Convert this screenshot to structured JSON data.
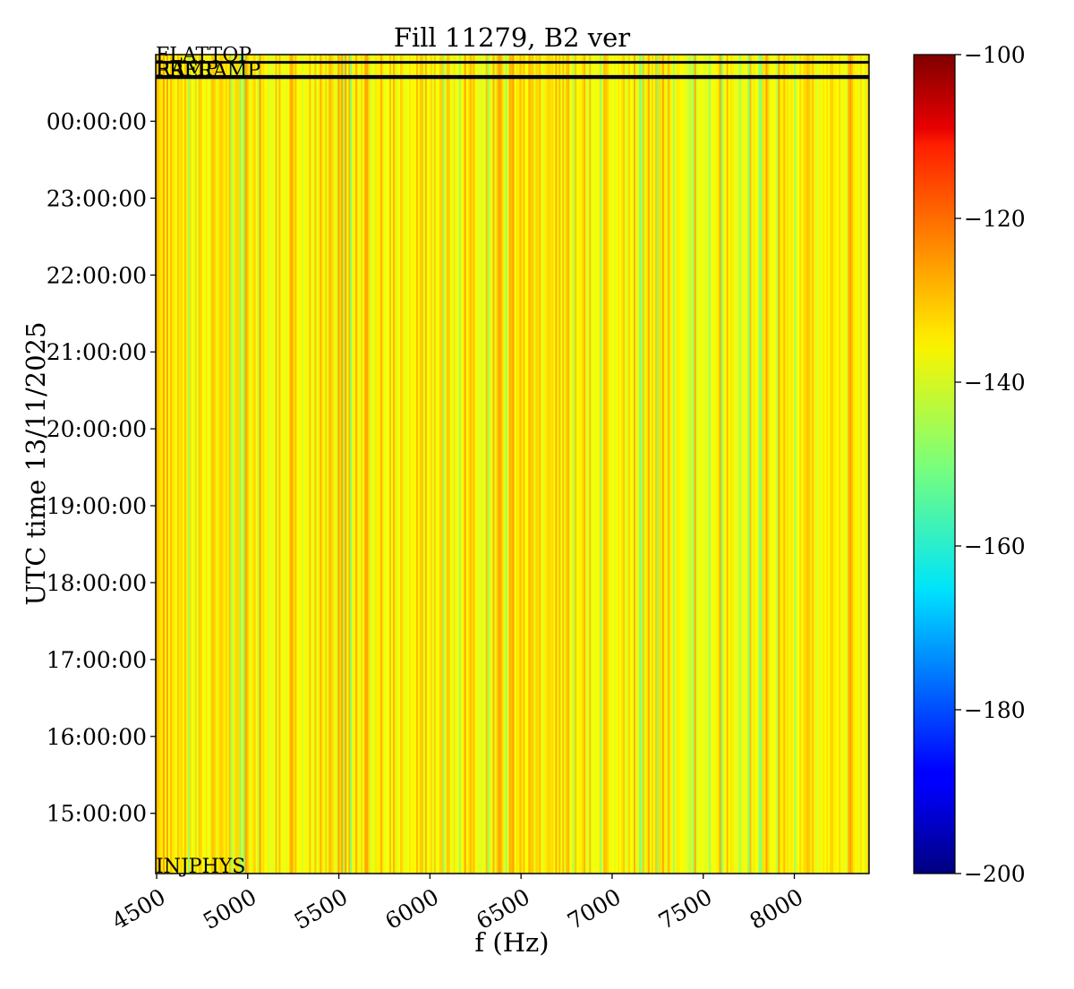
{
  "chart_data": {
    "type": "heatmap",
    "title": "Fill 11279, B2 ver",
    "xlabel": "f (Hz)",
    "ylabel": "UTC time 13/11/2025",
    "xlim": [
      4495,
      8410
    ],
    "xticks": [
      4500,
      5000,
      5500,
      6000,
      6500,
      7000,
      7500,
      8000
    ],
    "yticks": [
      "15:00:00",
      "16:00:00",
      "17:00:00",
      "18:00:00",
      "19:00:00",
      "20:00:00",
      "21:00:00",
      "22:00:00",
      "23:00:00",
      "00:00:00"
    ],
    "time_range": [
      "14:13:00",
      "00:52:00"
    ],
    "colormap": "jet",
    "colorbar": {
      "range": [
        -200,
        -100
      ],
      "ticks": [
        -100,
        -120,
        -140,
        -160,
        -180,
        -200
      ]
    },
    "typical_value_range": [
      -150,
      -128
    ],
    "structure": "vertical stripes; value depends on frequency, constant over time",
    "phase_markers": [
      {
        "label": "INJPHYS",
        "time": "14:13:00",
        "line": false
      },
      {
        "label": "PRERAMP",
        "time": "00:34:00",
        "line": true
      },
      {
        "label": "RAMP",
        "time": "00:35:00",
        "line": true
      },
      {
        "label": "FLATTOP",
        "time": "00:46:00",
        "line": true
      }
    ],
    "grid": false,
    "legend": "none"
  }
}
